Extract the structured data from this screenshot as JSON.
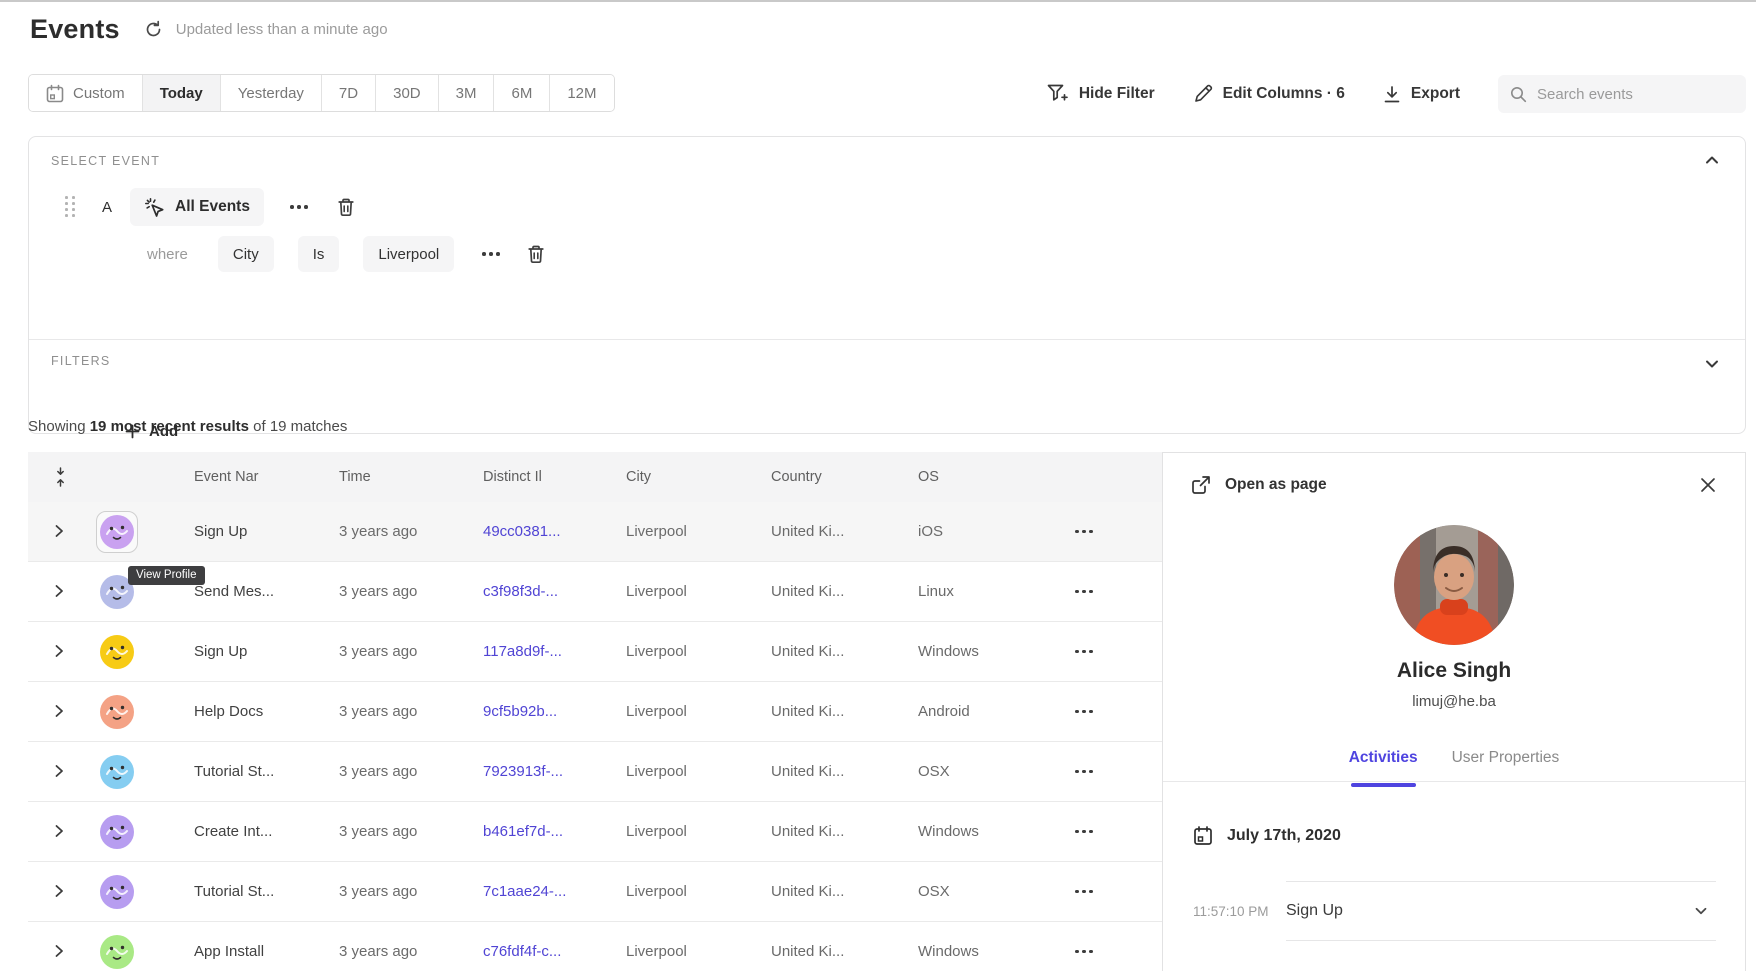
{
  "header": {
    "title": "Events",
    "updated": "Updated less than a minute ago"
  },
  "date_range": {
    "tabs": [
      {
        "label": "Custom",
        "icon": "calendar-icon",
        "active": false
      },
      {
        "label": "Today",
        "active": true
      },
      {
        "label": "Yesterday",
        "active": false
      },
      {
        "label": "7D",
        "active": false
      },
      {
        "label": "30D",
        "active": false
      },
      {
        "label": "3M",
        "active": false
      },
      {
        "label": "6M",
        "active": false
      },
      {
        "label": "12M",
        "active": false
      }
    ]
  },
  "toolbar": {
    "hide_filter_label": "Hide Filter",
    "edit_columns_label": "Edit Columns · 6",
    "export_label": "Export",
    "search_placeholder": "Search events"
  },
  "query_builder": {
    "select_event_label": "SELECT EVENT",
    "row_label": "A",
    "event_button_label": "All Events",
    "where_label": "where",
    "property_chip": "City",
    "operator_chip": "Is",
    "value_chip": "Liverpool",
    "add_label": "Add",
    "filters_label": "FILTERS"
  },
  "results": {
    "prefix": "Showing ",
    "highlight": "19 most recent results",
    "suffix": " of 19 matches"
  },
  "table": {
    "columns": [
      "Event Nar",
      "Time",
      "Distinct Il",
      "City",
      "Country",
      "OS"
    ],
    "rows": [
      {
        "event": "Sign Up",
        "time": "3 years ago",
        "distinct_id": "49cc0381...",
        "city": "Liverpool",
        "country": "United Ki...",
        "os": "iOS",
        "avatar_color": "#c9a1f0",
        "selected": true
      },
      {
        "event": "Send Mes...",
        "time": "3 years ago",
        "distinct_id": "c3f98f3d-...",
        "city": "Liverpool",
        "country": "United Ki...",
        "os": "Linux",
        "avatar_color": "#b5bce8",
        "selected": false
      },
      {
        "event": "Sign Up",
        "time": "3 years ago",
        "distinct_id": "117a8d9f-...",
        "city": "Liverpool",
        "country": "United Ki...",
        "os": "Windows",
        "avatar_color": "#f7cb15",
        "selected": false
      },
      {
        "event": "Help Docs",
        "time": "3 years ago",
        "distinct_id": "9cf5b92b...",
        "city": "Liverpool",
        "country": "United Ki...",
        "os": "Android",
        "avatar_color": "#f4a285",
        "selected": false
      },
      {
        "event": "Tutorial St...",
        "time": "3 years ago",
        "distinct_id": "7923913f-...",
        "city": "Liverpool",
        "country": "United Ki...",
        "os": "OSX",
        "avatar_color": "#85cdf1",
        "selected": false
      },
      {
        "event": "Create Int...",
        "time": "3 years ago",
        "distinct_id": "b461ef7d-...",
        "city": "Liverpool",
        "country": "United Ki...",
        "os": "Windows",
        "avatar_color": "#b79df0",
        "selected": false
      },
      {
        "event": "Tutorial St...",
        "time": "3 years ago",
        "distinct_id": "7c1aae24-...",
        "city": "Liverpool",
        "country": "United Ki...",
        "os": "OSX",
        "avatar_color": "#b79df0",
        "selected": false
      },
      {
        "event": "App Install",
        "time": "3 years ago",
        "distinct_id": "c76fdf4f-c...",
        "city": "Liverpool",
        "country": "United Ki...",
        "os": "Windows",
        "avatar_color": "#a9e985",
        "selected": false
      }
    ]
  },
  "tooltip": {
    "label": "View Profile"
  },
  "profile_panel": {
    "open_as_page_label": "Open as page",
    "name": "Alice Singh",
    "email": "limuj@he.ba",
    "tabs": [
      {
        "label": "Activities",
        "active": true
      },
      {
        "label": "User Properties",
        "active": false
      }
    ],
    "date_header": "July 17th, 2020",
    "activity": {
      "time": "11:57:10 PM",
      "event": "Sign Up"
    }
  },
  "colors": {
    "accent": "#4f44e0",
    "link": "#5044d4",
    "tooltip_bg": "#3e3e40"
  }
}
